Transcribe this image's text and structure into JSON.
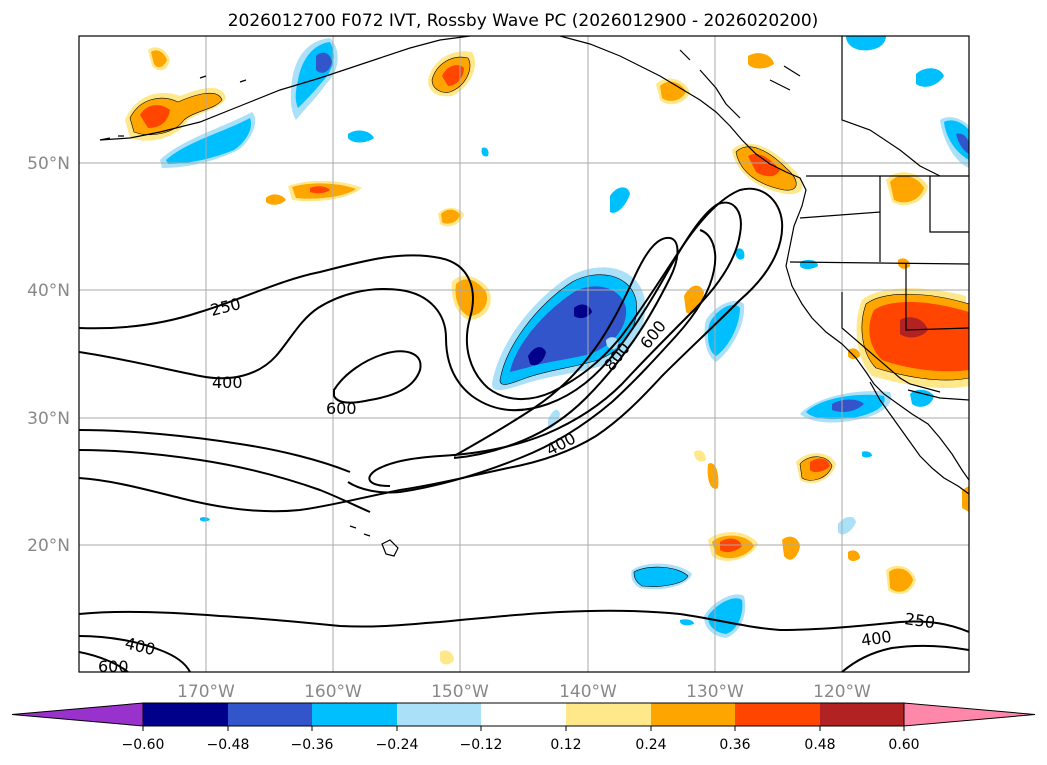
{
  "title": "2026012700 F072 IVT, Rossby Wave PC (2026012900 - 2026020200)",
  "map": {
    "lat_labels": [
      "50°N",
      "40°N",
      "30°N",
      "20°N"
    ],
    "lat_values": [
      50,
      40,
      30,
      20
    ],
    "lon_labels": [
      "170°W",
      "160°W",
      "150°W",
      "140°W",
      "130°W",
      "120°W"
    ],
    "lon_values": [
      -170,
      -160,
      -150,
      -140,
      -130,
      -120
    ],
    "lat_range": [
      10,
      60
    ],
    "lon_range": [
      -180,
      -110
    ],
    "label_color": "#888888"
  },
  "contour_labels": {
    "c250_a": "250",
    "c400_a": "400",
    "c600_a": "600",
    "c600_b": "600",
    "c800": "800",
    "c400_b": "400",
    "c250_b": "250",
    "c400_c": "400",
    "c400_d": "400",
    "c600_c": "600"
  },
  "colorbar": {
    "ticks": [
      "−0.60",
      "−0.48",
      "−0.36",
      "−0.24",
      "−0.12",
      "0.12",
      "0.24",
      "0.36",
      "0.48",
      "0.60"
    ],
    "colors": [
      "#9932cc",
      "#00008b",
      "#3355cc",
      "#00bfff",
      "#aae0f8",
      "#ffffff",
      "#ffe88a",
      "#ffa500",
      "#ff4500",
      "#b22222",
      "#ff88aa"
    ]
  },
  "palette": {
    "neg_dark": "#00008b",
    "neg_mid": "#3355cc",
    "neg": "#00bfff",
    "neg_light": "#aae0f8",
    "pos_light": "#ffe88a",
    "pos": "#ffa500",
    "pos_mid": "#ff4500",
    "pos_dark": "#b22222"
  }
}
